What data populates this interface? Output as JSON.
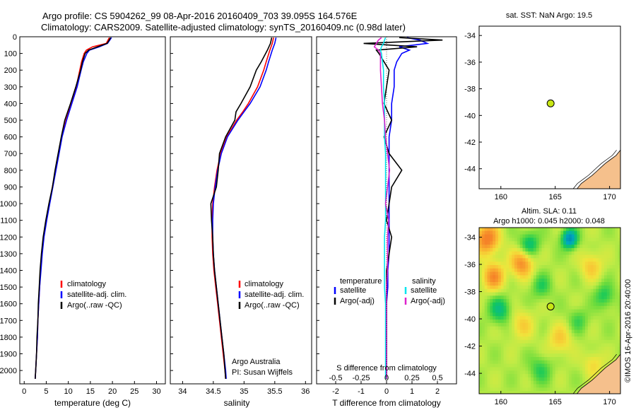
{
  "header": {
    "line1": "Argo profile: CS 5904262_99 08-Apr-2016 20160409_703 39.095S 164.576E",
    "line2": "Climatology: CARS2009. Satellite-adjusted climatology: synTS_20160409.nc (0.98d later)"
  },
  "colors": {
    "climatology": "#ff0000",
    "satellite": "#0000ff",
    "argo": "#000000",
    "salinity_satellite": "#00e5ee",
    "salinity_argo": "#dd22cc",
    "land": "#f5c08c",
    "marker": "#c8e614"
  },
  "chart_data": [
    {
      "id": "temperature",
      "type": "line",
      "xlabel": "temperature (deg C)",
      "ylabel": "",
      "xlim": [
        -1,
        32
      ],
      "ylim": [
        2080,
        0
      ],
      "xticks": [
        0,
        5,
        10,
        15,
        20,
        25,
        30
      ],
      "xticklabels": [
        "0",
        "5",
        "10",
        "15",
        "20",
        "25",
        "30"
      ],
      "yticks": [
        0,
        100,
        200,
        300,
        400,
        500,
        600,
        700,
        800,
        900,
        1000,
        1100,
        1200,
        1300,
        1400,
        1500,
        1600,
        1700,
        1800,
        1900,
        2000
      ],
      "yticklabels": [
        "0",
        "100",
        "200",
        "300",
        "400",
        "500",
        "600",
        "700",
        "800",
        "900",
        "1000",
        "1100",
        "1200",
        "1300",
        "1400",
        "1500",
        "1600",
        "1700",
        "1800",
        "1900",
        "2000"
      ],
      "legend": [
        "climatology",
        "satellite-adj. clim.",
        "Argo(..raw -QC)"
      ],
      "depth": [
        5,
        40,
        60,
        80,
        100,
        150,
        200,
        300,
        400,
        500,
        600,
        700,
        800,
        900,
        1000,
        1100,
        1200,
        1300,
        1400,
        1500,
        1600,
        1700,
        1800,
        1900,
        2000,
        2050
      ],
      "series": [
        {
          "name": "climatology",
          "values": [
            19.3,
            18.6,
            15.5,
            14.1,
            13.6,
            13.0,
            12.6,
            11.8,
            10.7,
            9.5,
            8.5,
            7.8,
            7.1,
            6.4,
            5.7,
            5.0,
            4.4,
            4.0,
            3.7,
            3.5,
            3.3,
            3.1,
            3.0,
            2.8,
            2.6,
            2.5
          ]
        },
        {
          "name": "satellite-adj. clim.",
          "values": [
            19.8,
            18.9,
            17.0,
            14.8,
            14.2,
            13.4,
            12.9,
            12.0,
            10.8,
            9.6,
            8.6,
            7.9,
            7.2,
            6.5,
            5.8,
            5.1,
            4.5,
            4.1,
            3.8,
            3.5,
            3.3,
            3.1,
            3.0,
            2.8,
            2.6,
            2.5
          ]
        },
        {
          "name": "Argo(..raw -QC)",
          "values": [
            19.6,
            18.8,
            16.6,
            14.6,
            13.8,
            13.2,
            12.8,
            11.7,
            10.5,
            9.2,
            8.4,
            7.7,
            7.0,
            6.4,
            5.6,
            4.9,
            4.3,
            3.9,
            3.6,
            3.4,
            3.2,
            3.1,
            2.9,
            2.8,
            2.6,
            2.5
          ]
        }
      ]
    },
    {
      "id": "salinity",
      "type": "line",
      "xlabel": "salinity",
      "xlim": [
        33.8,
        36.1
      ],
      "ylim": [
        2080,
        0
      ],
      "xticks": [
        34,
        34.5,
        35,
        35.5,
        36
      ],
      "xticklabels": [
        "34",
        "34.5",
        "35",
        "35.5",
        "36"
      ],
      "legend": [
        "climatology",
        "satellite-adj. clim.",
        "Argo(..raw -QC)"
      ],
      "annotation": [
        "Argo Australia",
        "PI: Susan Wijffels"
      ],
      "depth": [
        5,
        40,
        80,
        150,
        200,
        300,
        400,
        450,
        500,
        600,
        700,
        800,
        900,
        1000,
        1100,
        1200,
        1300,
        1400,
        1500,
        1600,
        1700,
        1800,
        1900,
        2000,
        2050
      ],
      "series": [
        {
          "name": "climatology",
          "values": [
            35.48,
            35.46,
            35.42,
            35.36,
            35.32,
            35.22,
            35.07,
            34.98,
            34.88,
            34.72,
            34.62,
            34.56,
            34.52,
            34.49,
            34.48,
            34.48,
            34.49,
            34.51,
            34.54,
            34.57,
            34.6,
            34.63,
            34.66,
            34.69,
            34.7
          ]
        },
        {
          "name": "satellite-adj. clim.",
          "values": [
            35.52,
            35.5,
            35.46,
            35.4,
            35.36,
            35.26,
            35.1,
            35.0,
            34.9,
            34.73,
            34.63,
            34.57,
            34.53,
            34.5,
            34.49,
            34.49,
            34.5,
            34.52,
            34.55,
            34.58,
            34.61,
            34.64,
            34.67,
            34.7,
            34.71
          ]
        },
        {
          "name": "Argo(..raw -QC)",
          "values": [
            35.45,
            35.43,
            35.38,
            35.28,
            35.2,
            35.1,
            34.95,
            34.87,
            34.85,
            34.7,
            34.6,
            34.58,
            34.55,
            34.46,
            34.47,
            34.49,
            34.5,
            34.52,
            34.55,
            34.58,
            34.61,
            34.64,
            34.67,
            34.69,
            34.7
          ]
        }
      ]
    },
    {
      "id": "differences",
      "type": "line",
      "xlabel": "T difference from climatology",
      "xlabel_top": "S difference from climatology",
      "xlim": [
        -2.75,
        2.75
      ],
      "ylim": [
        2080,
        0
      ],
      "xticks_bottom": [
        -2,
        -1,
        0,
        1,
        2
      ],
      "xticklabels_bottom": [
        "-2",
        "-1",
        "0",
        "1",
        "2"
      ],
      "xticks_top": [
        -0.5,
        -0.25,
        0,
        0.25,
        0.5
      ],
      "xticklabels_top": [
        "-0.5",
        "-0.25",
        "0",
        "0.25",
        "0.5"
      ],
      "legend_temperature_title": "temperature",
      "legend_salinity_title": "salinity",
      "legend": [
        "satellite",
        "Argo(-adj)",
        "satellite",
        "Argo(-adj)"
      ],
      "depth": [
        5,
        20,
        40,
        60,
        80,
        100,
        150,
        200,
        300,
        400,
        500,
        600,
        700,
        800,
        900,
        1000,
        1100,
        1200,
        1300,
        1400,
        1500,
        1600,
        1700,
        1800,
        1900,
        2000,
        2050
      ],
      "series": [
        {
          "name": "T satellite",
          "values": [
            0.8,
            1.3,
            1.6,
            0.5,
            0.9,
            0.6,
            0.4,
            0.3,
            0.3,
            0.2,
            0.2,
            0.1,
            0.1,
            0.1,
            0.1,
            0.1,
            0.1,
            0.1,
            0.1,
            0.05,
            0.05,
            0.0,
            0.0,
            0.0,
            0.0,
            0.0,
            0.0
          ]
        },
        {
          "name": "T Argo(-adj)",
          "values": [
            0.5,
            2.2,
            -0.9,
            1.2,
            -0.4,
            -0.3,
            -0.1,
            0.1,
            0.0,
            -0.1,
            0.2,
            -0.1,
            0.1,
            0.6,
            0.2,
            0.1,
            0.0,
            0.2,
            0.1,
            0.0,
            0.0,
            0.0,
            0.0,
            0.0,
            0.0,
            0.0,
            0.0
          ]
        },
        {
          "name": "S satellite",
          "values": [
            -0.01,
            -0.02,
            -0.03,
            -0.05,
            -0.06,
            -0.05,
            -0.04,
            -0.03,
            -0.03,
            -0.02,
            -0.02,
            -0.02,
            -0.01,
            -0.01,
            -0.01,
            -0.01,
            -0.01,
            -0.02,
            -0.02,
            -0.02,
            -0.02,
            -0.01,
            -0.01,
            -0.01,
            -0.01,
            -0.01,
            -0.01
          ]
        },
        {
          "name": "S Argo(-adj)",
          "values": [
            -0.05,
            -0.08,
            -0.1,
            -0.12,
            -0.08,
            -0.06,
            -0.06,
            -0.06,
            -0.05,
            -0.04,
            -0.02,
            -0.01,
            0.01,
            0.03,
            0.01,
            -0.01,
            0.02,
            0.01,
            0.01,
            0.01,
            0.0,
            0.0,
            0.0,
            0.0,
            0.0,
            0.0,
            0.0
          ]
        }
      ]
    },
    {
      "id": "sst_map",
      "type": "scatter",
      "title": "sat. SST: NaN Argo: 19.5",
      "xlim": [
        158,
        171
      ],
      "ylim": [
        -45.5,
        -33.3
      ],
      "xticks": [
        160,
        165,
        170
      ],
      "xticklabels": [
        "160",
        "165",
        "170"
      ],
      "yticks": [
        -34,
        -36,
        -38,
        -40,
        -42,
        -44
      ],
      "yticklabels": [
        "-34",
        "-36",
        "-38",
        "-40",
        "-42",
        "-44"
      ],
      "points": [
        {
          "lon": 164.576,
          "lat": -39.095
        }
      ]
    },
    {
      "id": "sla_map",
      "type": "heatmap",
      "title_line1": "Altim. SLA: 0.11",
      "title_line2": "Argo h1000: 0.045 h2000: 0.048",
      "side_label": "©IMOS 16-Apr-2016 20:40:00",
      "xlim": [
        158,
        171
      ],
      "ylim": [
        -45.5,
        -33.3
      ],
      "xticks": [
        160,
        165,
        170
      ],
      "xticklabels": [
        "160",
        "165",
        "170"
      ],
      "yticks": [
        -34,
        -36,
        -38,
        -40,
        -42,
        -44
      ],
      "yticklabels": [
        "-34",
        "-36",
        "-38",
        "-40",
        "-42",
        "-44"
      ],
      "points": [
        {
          "lon": 164.576,
          "lat": -39.095
        }
      ],
      "anomaly_blobs": [
        {
          "lon": 158.6,
          "lat": -34.0,
          "value": 0.3,
          "spread": 1.1
        },
        {
          "lon": 159.2,
          "lat": -36.8,
          "value": 0.25,
          "spread": 1.0
        },
        {
          "lon": 161.8,
          "lat": -35.8,
          "value": 0.26,
          "spread": 1.0
        },
        {
          "lon": 162.5,
          "lat": -34.4,
          "value": -0.18,
          "spread": 0.9
        },
        {
          "lon": 166.2,
          "lat": -34.0,
          "value": -0.35,
          "spread": 0.7
        },
        {
          "lon": 163.6,
          "lat": -37.5,
          "value": -0.12,
          "spread": 0.9
        },
        {
          "lon": 168.2,
          "lat": -36.0,
          "value": 0.14,
          "spread": 1.0
        },
        {
          "lon": 169.4,
          "lat": -38.2,
          "value": -0.14,
          "spread": 0.9
        },
        {
          "lon": 159.8,
          "lat": -39.2,
          "value": -0.18,
          "spread": 1.0
        },
        {
          "lon": 161.8,
          "lat": -40.3,
          "value": 0.12,
          "spread": 1.1
        },
        {
          "lon": 165.3,
          "lat": -41.4,
          "value": 0.13,
          "spread": 1.1
        },
        {
          "lon": 167.0,
          "lat": -40.0,
          "value": -0.1,
          "spread": 0.9
        },
        {
          "lon": 163.5,
          "lat": -43.6,
          "value": -0.12,
          "spread": 1.0
        },
        {
          "lon": 168.4,
          "lat": -43.2,
          "value": 0.11,
          "spread": 0.9
        }
      ]
    }
  ]
}
